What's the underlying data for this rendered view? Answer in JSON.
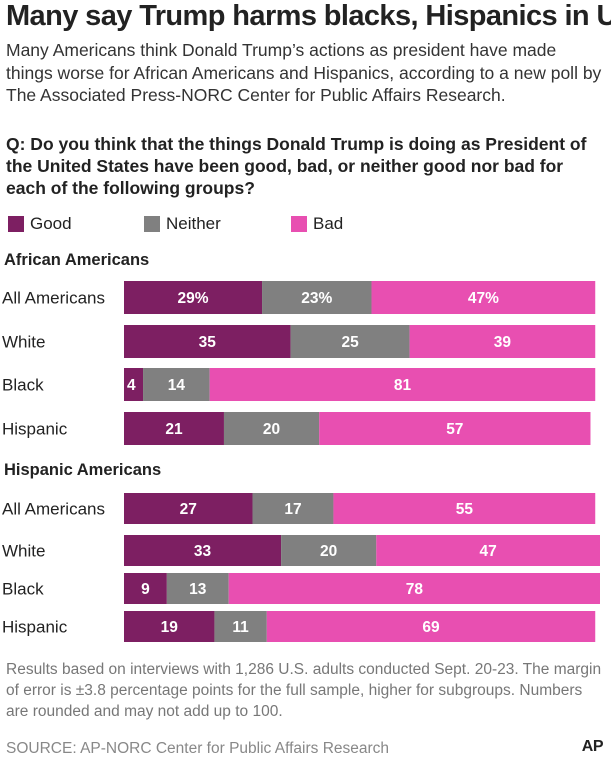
{
  "title": "Many say Trump harms blacks, Hispanics in US",
  "subtitle": "Many Americans think Donald Trump’s actions as president have made things worse for African Americans and Hispanics, according to a new poll by The Associated Press-NORC Center for Public Affairs Research.",
  "question": "Q: Do you think that the things Donald Trump is doing as President of the United States have been good, bad, or neither good nor bad for each of the following groups?",
  "legend": [
    {
      "label": "Good",
      "color": "#7d1f62"
    },
    {
      "label": "Neither",
      "color": "#808080"
    },
    {
      "label": "Bad",
      "color": "#e84fb1"
    }
  ],
  "footnote": "Results based on interviews with 1,286 U.S. adults conducted Sept. 20-23. The margin of error is ±3.8 percentage points for the full sample, higher for subgroups. Numbers are rounded and may not add up to 100.",
  "source": "SOURCE: AP-NORC Center for Public Affairs Research",
  "logo_text": "AP",
  "chart_data": {
    "type": "bar",
    "orientation": "horizontal",
    "stacked": true,
    "series_names": [
      "Good",
      "Neither",
      "Bad"
    ],
    "colors": [
      "#7d1f62",
      "#808080",
      "#e84fb1"
    ],
    "xlim": [
      0,
      100
    ],
    "groups": [
      {
        "title": "African Americans",
        "rows": [
          {
            "label": "All Americans",
            "values": [
              29,
              23,
              47
            ],
            "display": [
              "29%",
              "23%",
              "47%"
            ]
          },
          {
            "label": "White",
            "values": [
              35,
              25,
              39
            ],
            "display": [
              "35",
              "25",
              "39"
            ]
          },
          {
            "label": "Black",
            "values": [
              4,
              14,
              81
            ],
            "display": [
              "4",
              "14",
              "81"
            ]
          },
          {
            "label": "Hispanic",
            "values": [
              21,
              20,
              57
            ],
            "display": [
              "21",
              "20",
              "57"
            ]
          }
        ]
      },
      {
        "title": "Hispanic Americans",
        "rows": [
          {
            "label": "All Americans",
            "values": [
              27,
              17,
              55
            ],
            "display": [
              "27",
              "17",
              "55"
            ]
          },
          {
            "label": "White",
            "values": [
              33,
              20,
              47
            ],
            "display": [
              "33",
              "20",
              "47"
            ]
          },
          {
            "label": "Black",
            "values": [
              9,
              13,
              78
            ],
            "display": [
              "9",
              "13",
              "78"
            ]
          },
          {
            "label": "Hispanic",
            "values": [
              19,
              11,
              69
            ],
            "display": [
              "19",
              "11",
              "69"
            ]
          }
        ]
      }
    ]
  }
}
